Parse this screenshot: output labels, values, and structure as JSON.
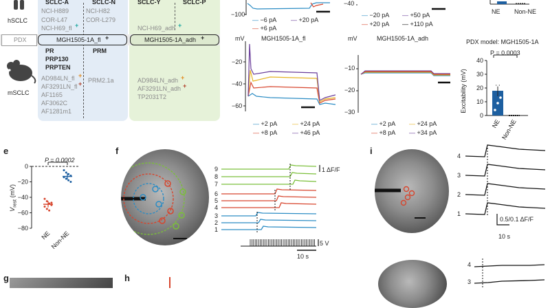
{
  "panel_a": {
    "hsclc_label": "hSCLC",
    "msclc_label": "mSCLC",
    "pdx_label": "PDX",
    "sclc_a": "SCLC-A",
    "sclc_n": "SCLC-N",
    "sclc_y": "SCLC-Y",
    "sclc_p": "SCLC-P",
    "human_a": [
      "NCI-H889",
      "COR-L47",
      "NCI-H69_fl"
    ],
    "human_n": [
      "NCI-H82",
      "COR-L279"
    ],
    "human_y": [
      "NCI-H69_adh"
    ],
    "pdx_fl": "MGH1505-1A_fl",
    "pdx_adh": "MGH1505-1A_adh",
    "mouse_a_bold": [
      "PR",
      "PRP130",
      "PRPTEN"
    ],
    "mouse_n_bold": [
      "PRM"
    ],
    "mouse_a": [
      "AD984LN_fl",
      "AF3291LN_fl",
      "AF1165",
      "AF3062C",
      "AF1281m1"
    ],
    "mouse_n": [
      "PRM2.1a"
    ],
    "mouse_y": [
      "AD984LN_adh",
      "AF3291LN_adh",
      "TP2031T2"
    ],
    "marker_plus": "+"
  },
  "panel_top_traces": {
    "ytick_-100": "−100",
    "left_legend": [
      "−6 pA",
      "+20 pA",
      "+6 pA"
    ],
    "mid_ytick": "−40",
    "mid_legend": [
      "−20 pA",
      "+50 pA",
      "+20 pA",
      "+110 pA"
    ],
    "right_cats": [
      "NE",
      "Non-NE"
    ]
  },
  "panel_mgh": {
    "fl_title": "MGH1505-1A_fl",
    "adh_title": "MGH1505-1A_adh",
    "unit": "mV",
    "fl_yticks": [
      "−20",
      "−40",
      "−60"
    ],
    "adh_yticks": [
      "−10",
      "−20",
      "−30"
    ],
    "fl_legend": [
      "+2 pA",
      "+24 pA",
      "+8 pA",
      "+46 pA"
    ],
    "adh_legend": [
      "+2 pA",
      "+24 pA",
      "+8 pA",
      "+34 pA"
    ],
    "colors": {
      "blue": "#2b8cc4",
      "yellow": "#e6b422",
      "red": "#d7452d",
      "purple": "#6a3d9a",
      "black": "#111111"
    }
  },
  "panel_pdx_bar": {
    "title": "PDX model: MGH1505-1A",
    "p_text": "P = 0.0003",
    "ylabel": "Excitability (mV)",
    "yticks": [
      "40",
      "30",
      "20",
      "10",
      "0"
    ],
    "categories": [
      "NE",
      "Non-NE"
    ]
  },
  "chart_data": [
    {
      "type": "bar",
      "title": "PDX model: MGH1505-1A",
      "categories": [
        "NE",
        "Non-NE"
      ],
      "values": [
        18,
        0
      ],
      "errors": [
        4,
        0
      ],
      "ylabel": "Excitability (mV)",
      "ylim": [
        0,
        40
      ],
      "annotation": "P = 0.0003"
    },
    {
      "type": "scatter",
      "categories": [
        "NE",
        "Non-NE"
      ],
      "means": [
        -49,
        -13
      ],
      "points": {
        "NE": [
          -42,
          -45,
          -48,
          -50,
          -52,
          -55,
          -57,
          -47
        ],
        "Non-NE": [
          -5,
          -8,
          -10,
          -12,
          -14,
          -16,
          -18,
          -20
        ]
      },
      "ylabel": "V_rest (mV)",
      "ylim": [
        -80,
        0
      ],
      "annotation": "P = 0.0002"
    }
  ],
  "panel_e": {
    "label": "e",
    "p_text": "P = 0.0002",
    "yticks": [
      "0",
      "−20",
      "−40",
      "−60",
      "−80"
    ],
    "ylabel_main": "V",
    "ylabel_sub": "rest",
    "ylabel_unit": " (mV)",
    "categories": [
      "NE",
      "Non-NE"
    ]
  },
  "panel_f": {
    "label": "f",
    "trace_numbers": [
      "9",
      "8",
      "7",
      "6",
      "5",
      "4",
      "3",
      "2",
      "1"
    ],
    "scale_label": "1 ΔF/F",
    "stim_label": "5 V",
    "time_label": "10 s"
  },
  "panel_i": {
    "label": "i",
    "trace_numbers": [
      "4",
      "3",
      "2",
      "1"
    ],
    "scale_label": "0.5/0.1 ΔF/F",
    "time_label": "10 s",
    "lower_numbers": [
      "4",
      "3"
    ]
  },
  "panel_g": {
    "label": "g"
  },
  "panel_h": {
    "label": "h"
  }
}
